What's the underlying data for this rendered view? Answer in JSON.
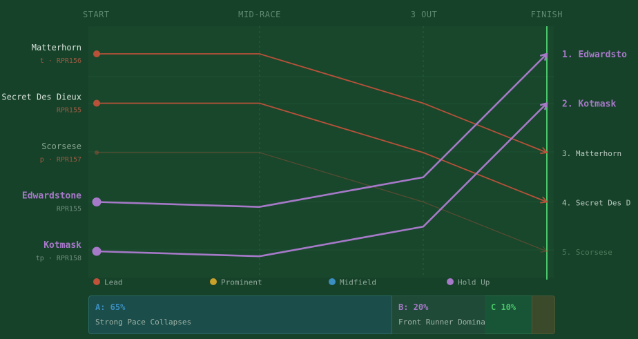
{
  "chart_data": {
    "type": "line",
    "x": [
      "START",
      "MID-RACE",
      "3 OUT",
      "FINISH"
    ],
    "colors": {
      "lead": "#c0523a",
      "holdup": "#a779c9",
      "prominent": "#c8a02a",
      "midfield": "#3a8ec0",
      "finish_line": "#49c86a"
    },
    "series": [
      {
        "name": "Matterhorn",
        "sub": "t · RPR156",
        "style": "lead",
        "positions": [
          1,
          1,
          2,
          3
        ],
        "finish_label": "3. Matterhorn"
      },
      {
        "name": "Secret Des Dieux",
        "sub": "RPR155",
        "style": "lead",
        "positions": [
          2,
          2,
          3,
          4
        ],
        "finish_label": "4. Secret Des D"
      },
      {
        "name": "Scorsese",
        "sub": "p · RPR157",
        "style": "faded",
        "positions": [
          3,
          3,
          4,
          5
        ],
        "finish_label": "5. Scorsese"
      },
      {
        "name": "Edwardstone",
        "sub": "RPR155",
        "style": "holdup",
        "positions": [
          4,
          4.1,
          3.5,
          1
        ],
        "finish_label": "1. Edwardsto"
      },
      {
        "name": "Kotmask",
        "sub": "tp · RPR158",
        "style": "holdup",
        "positions": [
          5,
          5.1,
          4.5,
          2
        ],
        "finish_label": "2. Kotmask"
      }
    ],
    "legend": [
      {
        "label": "Lead",
        "color": "#c0523a"
      },
      {
        "label": "Prominent",
        "color": "#c8a02a"
      },
      {
        "label": "Midfield",
        "color": "#3a8ec0"
      },
      {
        "label": "Hold Up",
        "color": "#a779c9"
      }
    ]
  },
  "scenarios": [
    {
      "pct": "A: 65%",
      "desc": "Strong Pace Collapses",
      "color": "#3a8ec0"
    },
    {
      "pct": "B: 20%",
      "desc": "Front Runner Dominates",
      "color": "#a779c9"
    },
    {
      "pct": "C 10%",
      "desc": "",
      "color": "#49c86a"
    }
  ]
}
